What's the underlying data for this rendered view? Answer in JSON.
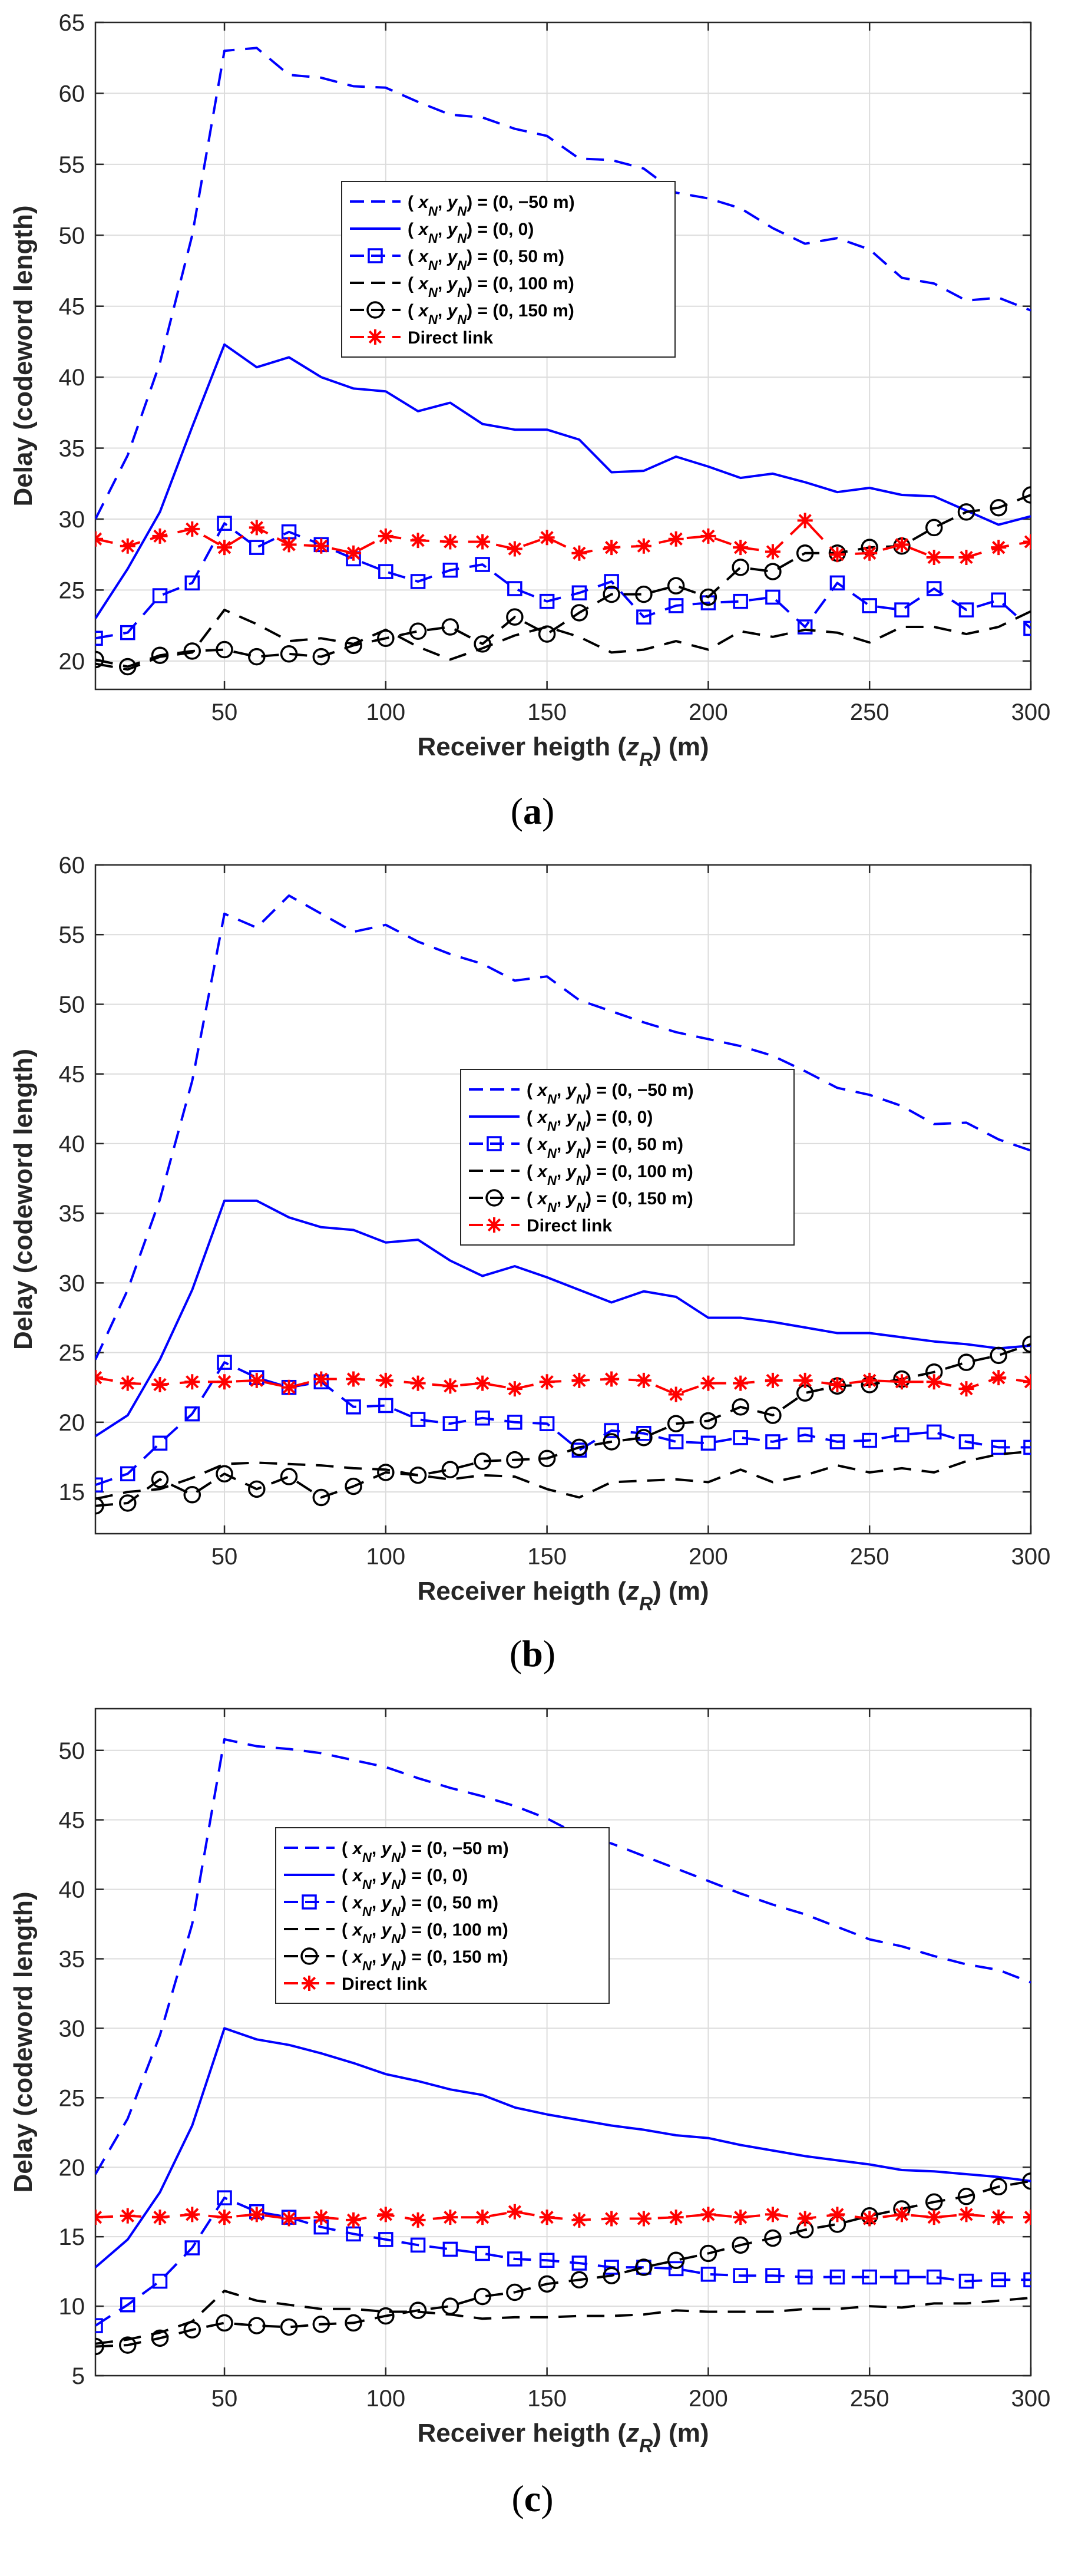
{
  "figure": {
    "panels": [
      "(a)",
      "(b)",
      "(c)"
    ]
  },
  "legend_labels": [
    "( xₙ, yₙ) = (0, −50 m)",
    "( xₙ, yₙ) = (0, 0)",
    "( xₙ, yₙ) = (0, 50 m)",
    "( xₙ, yₙ) = (0, 100 m)",
    "( xₙ, yₙ) = (0, 150 m)",
    "Direct link"
  ],
  "styles": {
    "blue": "#0000ff",
    "black": "#000000",
    "red": "#ff0000",
    "grid": "#dcdcdc",
    "axis": "#262626"
  },
  "chart_data": [
    {
      "type": "line",
      "panel": "(a)",
      "xlabel": "Receiver heigth (z_R) (m)",
      "ylabel": "Delay (codeword length)",
      "xlim": [
        10,
        300
      ],
      "ylim": [
        18,
        65
      ],
      "xticks": [
        50,
        100,
        150,
        200,
        250,
        300
      ],
      "yticks": [
        20,
        25,
        30,
        35,
        40,
        45,
        50,
        55,
        60,
        65
      ],
      "grid": true,
      "legend_position": "top-center",
      "x": [
        10,
        20,
        30,
        40,
        50,
        60,
        70,
        80,
        90,
        100,
        110,
        120,
        130,
        140,
        150,
        160,
        170,
        180,
        190,
        200,
        210,
        220,
        230,
        240,
        250,
        260,
        270,
        280,
        290,
        300
      ],
      "series": [
        {
          "name": "( xₙ, yₙ) = (0, −50 m)",
          "color": "#0000ff",
          "dash": "dashed",
          "marker": "none",
          "values": [
            30,
            34.5,
            41,
            50,
            63,
            63.2,
            61.3,
            61.1,
            60.5,
            60.4,
            59.4,
            58.5,
            58.3,
            57.5,
            57,
            55.4,
            55.3,
            54.7,
            53,
            52.6,
            51.9,
            50.5,
            49.4,
            49.8,
            49,
            47,
            46.6,
            45.4,
            45.6,
            44.7
          ]
        },
        {
          "name": "( xₙ, yₙ) = (0, 0)",
          "color": "#0000ff",
          "dash": "solid",
          "marker": "none",
          "values": [
            23,
            26.5,
            30.5,
            36.5,
            42.3,
            40.7,
            41.4,
            40,
            39.2,
            39,
            37.6,
            38.2,
            36.7,
            36.3,
            36.3,
            35.6,
            33.3,
            33.4,
            34.4,
            33.7,
            32.9,
            33.2,
            32.6,
            31.9,
            32.2,
            31.7,
            31.6,
            30.6,
            29.6,
            30.2
          ]
        },
        {
          "name": "( xₙ, yₙ) = (0, 50 m)",
          "color": "#0000ff",
          "dash": "dashed",
          "marker": "square",
          "values": [
            21.6,
            22,
            24.6,
            25.5,
            29.7,
            28,
            29.1,
            28.2,
            27.2,
            26.3,
            25.6,
            26.4,
            26.8,
            25.1,
            24.2,
            24.8,
            25.6,
            23.1,
            23.9,
            24.1,
            24.2,
            24.5,
            22.4,
            25.5,
            23.9,
            23.6,
            25.1,
            23.6,
            24.3,
            22.3
          ]
        },
        {
          "name": "( xₙ, yₙ) = (0, 100 m)",
          "color": "#000000",
          "dash": "dashed",
          "marker": "none",
          "values": [
            19.8,
            19.4,
            20.3,
            20.6,
            23.6,
            22.6,
            21.4,
            21.6,
            21.2,
            22.2,
            21,
            20.1,
            20.9,
            21.8,
            22.4,
            21.7,
            20.6,
            20.8,
            21.4,
            20.8,
            22.1,
            21.7,
            22.2,
            22,
            21.3,
            22.4,
            22.4,
            21.9,
            22.4,
            23.5
          ]
        },
        {
          "name": "( xₙ, yₙ) = (0, 150 m)",
          "color": "#000000",
          "dash": "dashed",
          "marker": "circle",
          "values": [
            20.1,
            19.6,
            20.4,
            20.7,
            20.8,
            20.3,
            20.5,
            20.3,
            21.1,
            21.6,
            22.1,
            22.4,
            21.2,
            23.1,
            21.9,
            23.4,
            24.7,
            24.7,
            25.3,
            24.5,
            26.6,
            26.3,
            27.6,
            27.6,
            28,
            28.1,
            29.4,
            30.5,
            30.8,
            31.7
          ]
        },
        {
          "name": "Direct link",
          "color": "#ff0000",
          "dash": "dashed",
          "marker": "asterisk",
          "values": [
            28.6,
            28.1,
            28.8,
            29.3,
            28,
            29.4,
            28.2,
            28.1,
            27.6,
            28.8,
            28.5,
            28.4,
            28.4,
            27.9,
            28.7,
            27.6,
            28,
            28.1,
            28.6,
            28.8,
            28,
            27.7,
            29.9,
            27.5,
            27.6,
            28.2,
            27.3,
            27.3,
            28,
            28.4
          ]
        }
      ]
    },
    {
      "type": "line",
      "panel": "(b)",
      "xlabel": "Receiver heigth (z_R) (m)",
      "ylabel": "Delay (codeword length)",
      "xlim": [
        10,
        300
      ],
      "ylim": [
        12,
        60
      ],
      "xticks": [
        50,
        100,
        150,
        200,
        250,
        300
      ],
      "yticks": [
        15,
        20,
        25,
        30,
        35,
        40,
        45,
        50,
        55,
        60
      ],
      "grid": true,
      "legend_position": "right",
      "x": [
        10,
        20,
        30,
        40,
        50,
        60,
        70,
        80,
        90,
        100,
        110,
        120,
        130,
        140,
        150,
        160,
        170,
        180,
        190,
        200,
        210,
        220,
        230,
        240,
        250,
        260,
        270,
        280,
        290,
        300
      ],
      "series": [
        {
          "name": "( xₙ, yₙ) = (0, −50 m)",
          "color": "#0000ff",
          "dash": "dashed",
          "marker": "none",
          "values": [
            24.5,
            29.5,
            36,
            44.5,
            56.5,
            55.5,
            57.8,
            56.5,
            55.2,
            55.7,
            54.5,
            53.6,
            52.9,
            51.7,
            52,
            50.3,
            49.5,
            48.7,
            48,
            47.5,
            47,
            46.3,
            45.2,
            44,
            43.5,
            42.7,
            41.4,
            41.5,
            40.3,
            39.5
          ]
        },
        {
          "name": "( xₙ, yₙ) = (0, 0)",
          "color": "#0000ff",
          "dash": "solid",
          "marker": "none",
          "values": [
            19,
            20.5,
            24.5,
            29.5,
            35.9,
            35.9,
            34.7,
            34,
            33.8,
            32.9,
            33.1,
            31.6,
            30.5,
            31.2,
            30.4,
            29.5,
            28.6,
            29.4,
            29,
            27.5,
            27.5,
            27.2,
            26.8,
            26.4,
            26.4,
            26.1,
            25.8,
            25.6,
            25.3,
            25.5
          ]
        },
        {
          "name": "( xₙ, yₙ) = (0, 50 m)",
          "color": "#0000ff",
          "dash": "dashed",
          "marker": "square",
          "values": [
            15.5,
            16.3,
            18.5,
            20.6,
            24.3,
            23.2,
            22.5,
            22.9,
            21.1,
            21.2,
            20.2,
            19.9,
            20.3,
            20,
            19.9,
            18,
            19.4,
            19.2,
            18.6,
            18.5,
            18.9,
            18.6,
            19.1,
            18.6,
            18.7,
            19.1,
            19.3,
            18.6,
            18.2,
            18.2
          ]
        },
        {
          "name": "( xₙ, yₙ) = (0, 100 m)",
          "color": "#000000",
          "dash": "dashed",
          "marker": "none",
          "values": [
            14.5,
            15,
            15.2,
            16,
            17,
            17.1,
            17,
            16.9,
            16.7,
            16.6,
            16.2,
            15.9,
            16.2,
            16.1,
            15.2,
            14.6,
            15.7,
            15.8,
            15.9,
            15.7,
            16.6,
            15.7,
            16.2,
            16.9,
            16.4,
            16.7,
            16.4,
            17.2,
            17.7,
            17.9
          ]
        },
        {
          "name": "( xₙ, yₙ) = (0, 150 m)",
          "color": "#000000",
          "dash": "dashed",
          "marker": "circle",
          "values": [
            14,
            14.2,
            15.9,
            14.8,
            16.3,
            15.2,
            16.1,
            14.6,
            15.4,
            16.4,
            16.2,
            16.6,
            17.2,
            17.3,
            17.4,
            18.2,
            18.6,
            18.9,
            19.9,
            20.1,
            21.1,
            20.5,
            22.1,
            22.6,
            22.7,
            23.1,
            23.6,
            24.3,
            24.8,
            25.6
          ]
        },
        {
          "name": "Direct link",
          "color": "#ff0000",
          "dash": "dashed",
          "marker": "asterisk",
          "values": [
            23.2,
            22.8,
            22.7,
            22.9,
            22.9,
            23,
            22.5,
            23.1,
            23.1,
            23,
            22.8,
            22.6,
            22.8,
            22.4,
            22.9,
            23,
            23.1,
            23,
            22,
            22.8,
            22.8,
            23,
            23,
            22.7,
            23,
            22.9,
            22.9,
            22.4,
            23.2,
            22.9
          ]
        }
      ]
    },
    {
      "type": "line",
      "panel": "(c)",
      "xlabel": "Receiver heigth (z_R) (m)",
      "ylabel": "Delay (codeword length)",
      "xlim": [
        10,
        300
      ],
      "ylim": [
        5,
        53
      ],
      "xticks": [
        50,
        100,
        150,
        200,
        250,
        300
      ],
      "yticks": [
        5,
        10,
        15,
        20,
        25,
        30,
        35,
        40,
        45,
        50
      ],
      "grid": true,
      "legend_position": "top-left",
      "x": [
        10,
        20,
        30,
        40,
        50,
        60,
        70,
        80,
        90,
        100,
        110,
        120,
        130,
        140,
        150,
        160,
        170,
        180,
        190,
        200,
        210,
        220,
        230,
        240,
        250,
        260,
        270,
        280,
        290,
        300
      ],
      "series": [
        {
          "name": "( xₙ, yₙ) = (0, −50 m)",
          "color": "#0000ff",
          "dash": "dashed",
          "marker": "none",
          "values": [
            19.5,
            23.5,
            29.5,
            37.5,
            50.8,
            50.3,
            50.1,
            49.8,
            49.3,
            48.8,
            48,
            47.3,
            46.7,
            46,
            45.1,
            43.9,
            43.3,
            42.4,
            41.5,
            40.6,
            39.7,
            38.9,
            38.2,
            37.3,
            36.4,
            35.9,
            35.2,
            34.6,
            34.2,
            33.3
          ]
        },
        {
          "name": "( xₙ, yₙ) = (0, 0)",
          "color": "#0000ff",
          "dash": "solid",
          "marker": "none",
          "values": [
            12.8,
            14.8,
            18.2,
            23,
            30,
            29.2,
            28.8,
            28.2,
            27.5,
            26.7,
            26.2,
            25.6,
            25.2,
            24.3,
            23.8,
            23.4,
            23,
            22.7,
            22.3,
            22.1,
            21.6,
            21.2,
            20.8,
            20.5,
            20.2,
            19.8,
            19.7,
            19.5,
            19.3,
            19
          ]
        },
        {
          "name": "( xₙ, yₙ) = (0, 50 m)",
          "color": "#0000ff",
          "dash": "dashed",
          "marker": "square",
          "values": [
            8.6,
            10.1,
            11.8,
            14.2,
            17.8,
            16.8,
            16.4,
            15.7,
            15.2,
            14.8,
            14.4,
            14.1,
            13.8,
            13.4,
            13.3,
            13.1,
            12.8,
            12.8,
            12.7,
            12.3,
            12.2,
            12.2,
            12.1,
            12.1,
            12.1,
            12.1,
            12.1,
            11.8,
            11.9,
            11.9
          ]
        },
        {
          "name": "( xₙ, yₙ) = (0, 100 m)",
          "color": "#000000",
          "dash": "dashed",
          "marker": "none",
          "values": [
            7.3,
            7.6,
            8.1,
            8.9,
            11.1,
            10.4,
            10.1,
            9.8,
            9.8,
            9.6,
            9.6,
            9.4,
            9.1,
            9.2,
            9.2,
            9.3,
            9.3,
            9.4,
            9.7,
            9.6,
            9.6,
            9.6,
            9.8,
            9.8,
            10,
            9.9,
            10.2,
            10.2,
            10.4,
            10.6
          ]
        },
        {
          "name": "( xₙ, yₙ) = (0, 150 m)",
          "color": "#000000",
          "dash": "dashed",
          "marker": "circle",
          "values": [
            7.1,
            7.2,
            7.7,
            8.3,
            8.8,
            8.6,
            8.5,
            8.7,
            8.8,
            9.3,
            9.7,
            10,
            10.7,
            11,
            11.6,
            11.9,
            12.2,
            12.8,
            13.3,
            13.8,
            14.4,
            14.9,
            15.5,
            15.9,
            16.5,
            17,
            17.5,
            17.9,
            18.6,
            19
          ]
        },
        {
          "name": "Direct link",
          "color": "#ff0000",
          "dash": "dashed",
          "marker": "asterisk",
          "values": [
            16.4,
            16.5,
            16.4,
            16.6,
            16.4,
            16.6,
            16.3,
            16.4,
            16.2,
            16.6,
            16.2,
            16.4,
            16.4,
            16.8,
            16.4,
            16.2,
            16.3,
            16.3,
            16.4,
            16.6,
            16.4,
            16.6,
            16.3,
            16.6,
            16.3,
            16.6,
            16.4,
            16.6,
            16.4,
            16.4
          ]
        }
      ]
    }
  ]
}
